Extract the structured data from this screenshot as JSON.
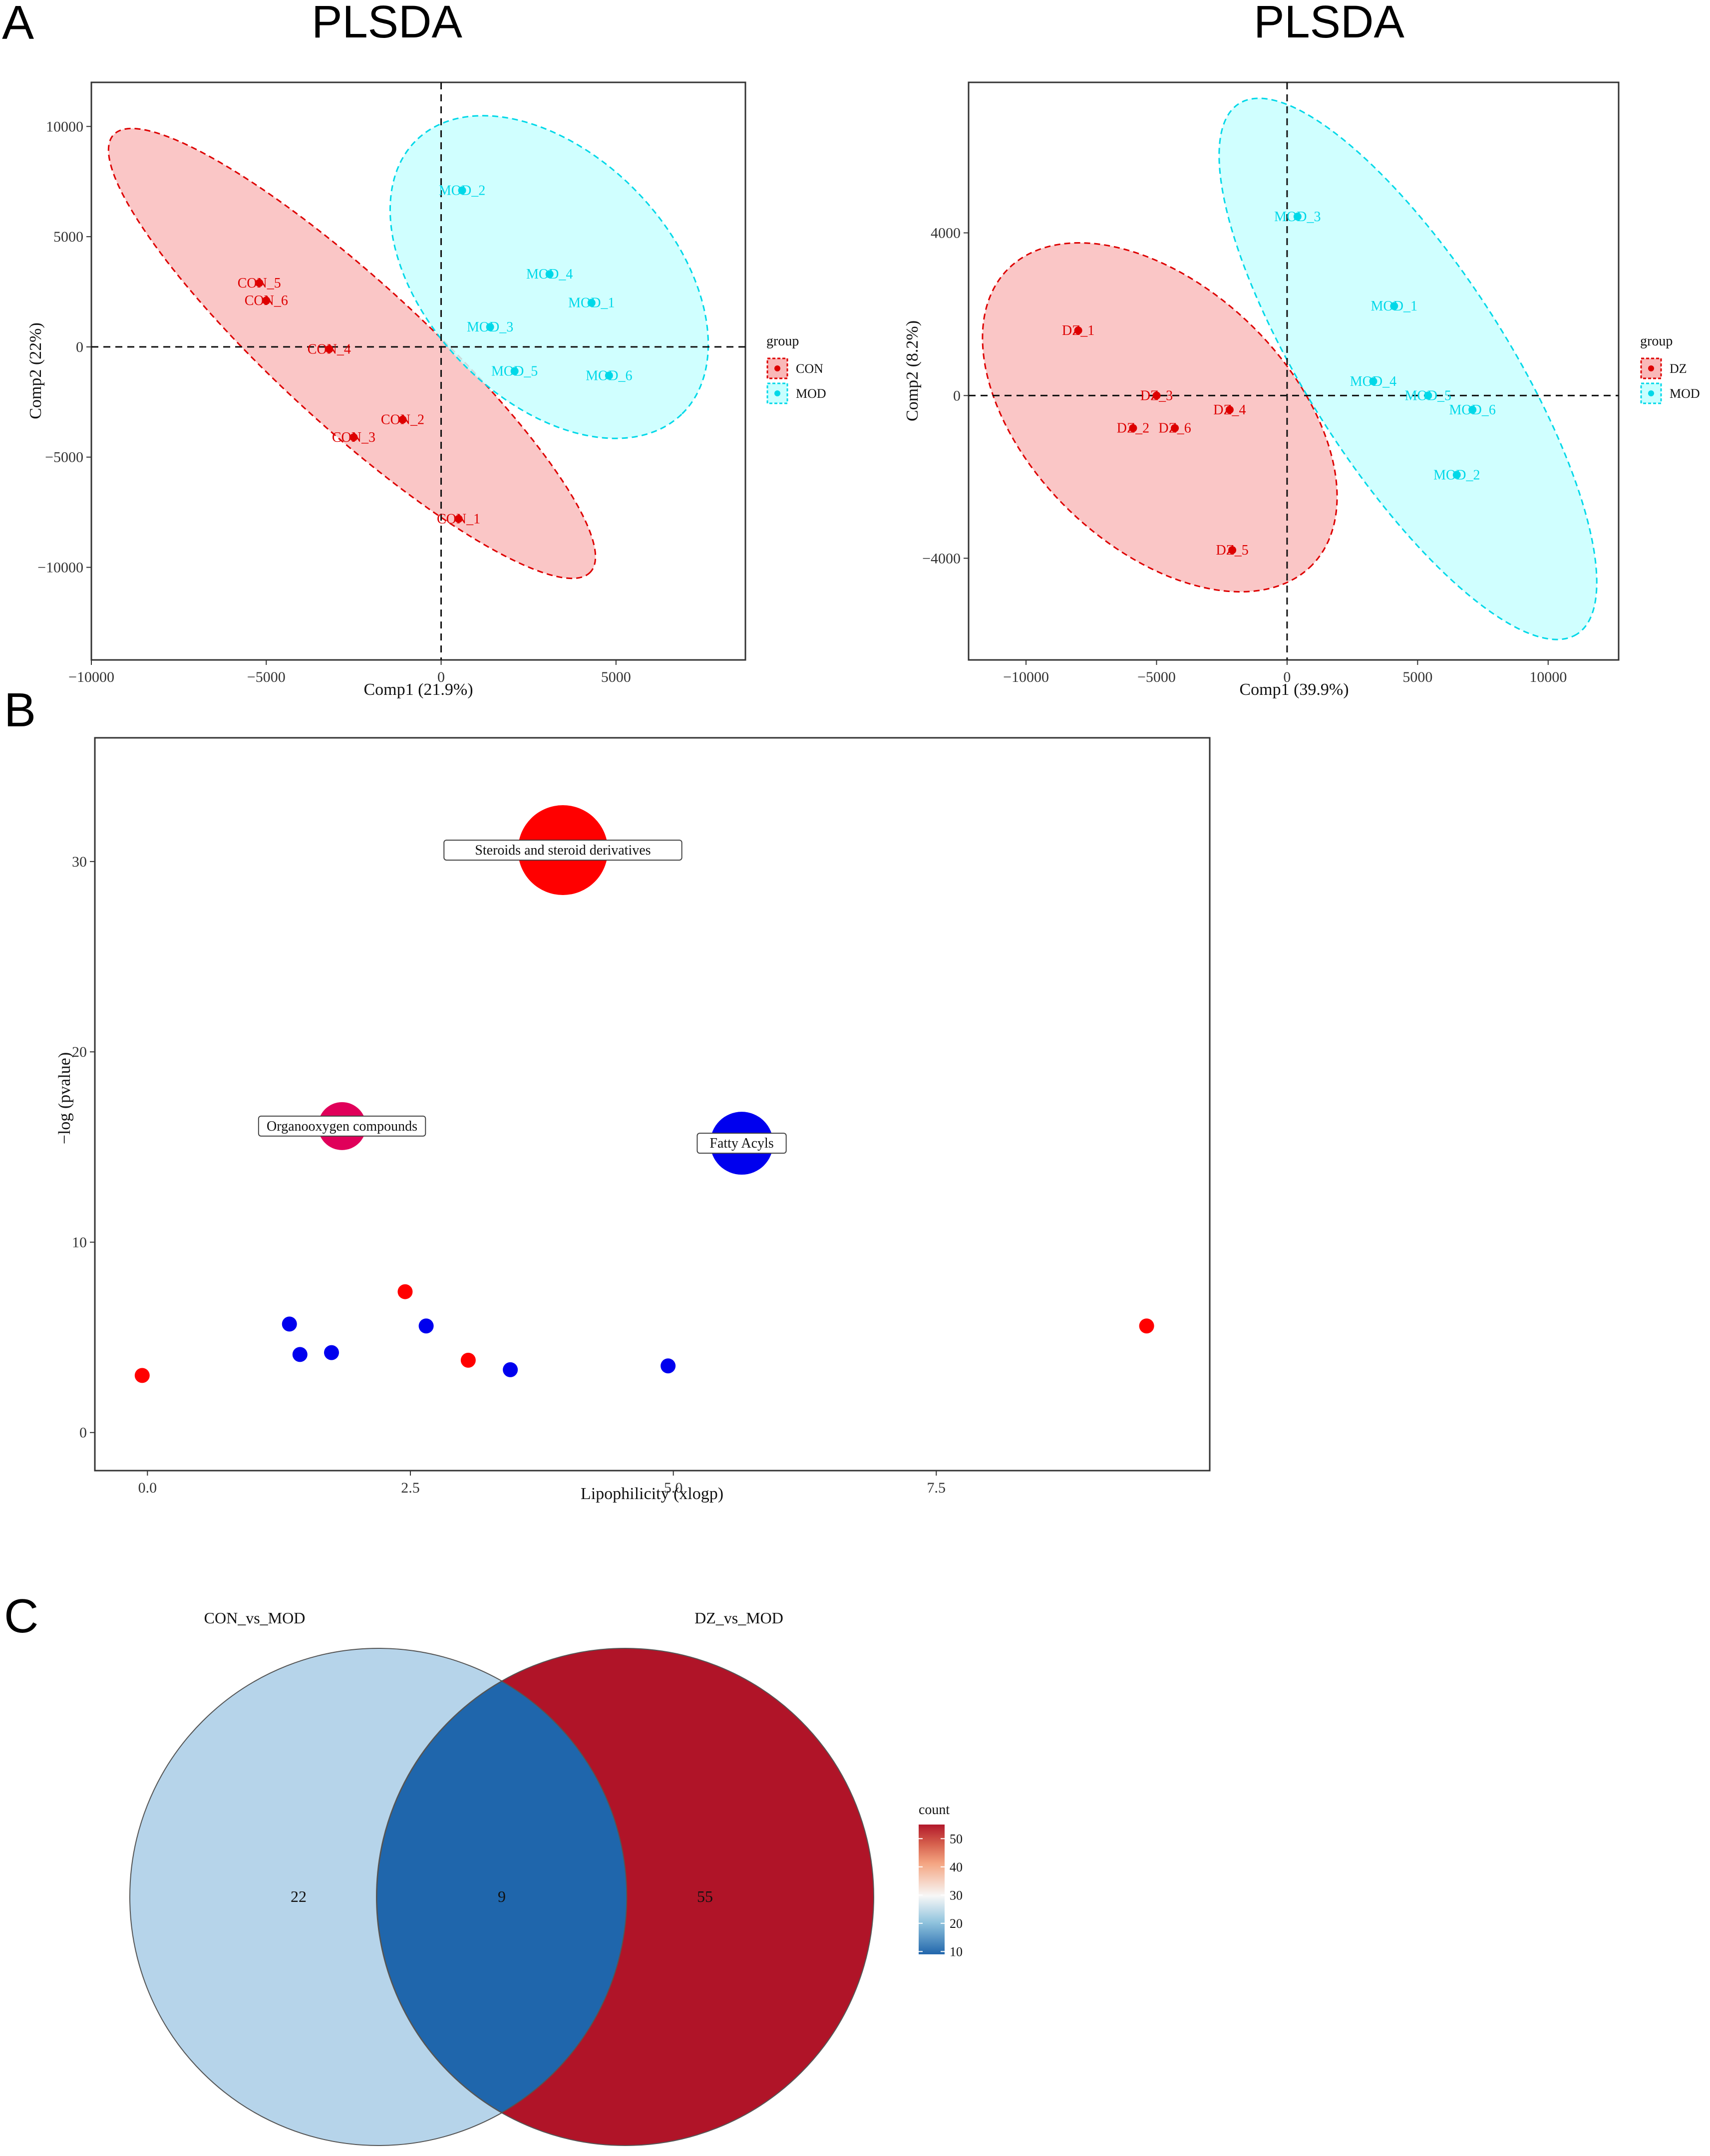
{
  "panels": {
    "a_letter": "A",
    "b_letter": "B",
    "c_letter": "C"
  },
  "colors": {
    "con_point": "#dd0000",
    "mod_point": "#00d8e8",
    "con_fill": "#f9b8b8",
    "mod_fill": "#c8ffff",
    "bubble_up": "#ff0000",
    "bubble_down": "#0000ee",
    "bubble_mix": "#e0005a",
    "venn_left": "#b6d4ea",
    "venn_overlap": "#1f66ac",
    "venn_right": "#b01428"
  },
  "chart_data": [
    {
      "type": "scatter",
      "id": "plsda_con_mod",
      "title": "PLSDA",
      "xlabel": "Comp1 (21.9%)",
      "ylabel": "Comp2 (22%)",
      "xlim": [
        -10000,
        8700
      ],
      "ylim": [
        -14200,
        12000
      ],
      "xticks": [
        -10000,
        -5000,
        0,
        5000
      ],
      "xtick_labels": [
        "−10000",
        "−5000",
        "0",
        "5000"
      ],
      "yticks": [
        10000,
        5000,
        0,
        -5000,
        -10000
      ],
      "ytick_labels": [
        "10000",
        "5000",
        "0",
        "−5000",
        "−10000"
      ],
      "legend": {
        "title": "group",
        "position": "right",
        "entries": [
          "CON",
          "MOD"
        ]
      },
      "series": [
        {
          "name": "CON",
          "points": [
            {
              "label": "CON_1",
              "x": 500,
              "y": -7800
            },
            {
              "label": "CON_2",
              "x": -1100,
              "y": -3300
            },
            {
              "label": "CON_3",
              "x": -2500,
              "y": -4100
            },
            {
              "label": "CON_4",
              "x": -3200,
              "y": -100
            },
            {
              "label": "CON_5",
              "x": -5200,
              "y": 2900
            },
            {
              "label": "CON_6",
              "x": -5000,
              "y": 2100
            }
          ]
        },
        {
          "name": "MOD",
          "points": [
            {
              "label": "MOD_1",
              "x": 4300,
              "y": 2000
            },
            {
              "label": "MOD_2",
              "x": 600,
              "y": 7100
            },
            {
              "label": "MOD_3",
              "x": 1400,
              "y": 900
            },
            {
              "label": "MOD_4",
              "x": 3100,
              "y": 3300
            },
            {
              "label": "MOD_5",
              "x": 2100,
              "y": -1100
            },
            {
              "label": "MOD_6",
              "x": 4800,
              "y": -1300
            }
          ]
        }
      ]
    },
    {
      "type": "scatter",
      "id": "plsda_dz_mod",
      "title": "PLSDA",
      "xlabel": "Comp1 (39.9%)",
      "ylabel": "Comp2 (8.2%)",
      "xlim": [
        -12200,
        12700
      ],
      "ylim": [
        -6500,
        7700
      ],
      "xticks": [
        -10000,
        -5000,
        0,
        5000,
        10000
      ],
      "xtick_labels": [
        "−10000",
        "−5000",
        "0",
        "5000",
        "10000"
      ],
      "yticks": [
        4000,
        0,
        -4000
      ],
      "ytick_labels": [
        "4000",
        "0",
        "−4000"
      ],
      "legend": {
        "title": "group",
        "position": "right",
        "entries": [
          "DZ",
          "MOD"
        ]
      },
      "series": [
        {
          "name": "DZ",
          "points": [
            {
              "label": "DZ_1",
              "x": -8000,
              "y": 1600
            },
            {
              "label": "DZ_2",
              "x": -5900,
              "y": -800
            },
            {
              "label": "DZ_3",
              "x": -5000,
              "y": 0
            },
            {
              "label": "DZ_4",
              "x": -2200,
              "y": -350
            },
            {
              "label": "DZ_5",
              "x": -2100,
              "y": -3800
            },
            {
              "label": "DZ_6",
              "x": -4300,
              "y": -800
            }
          ]
        },
        {
          "name": "MOD",
          "points": [
            {
              "label": "MOD_1",
              "x": 4100,
              "y": 2200
            },
            {
              "label": "MOD_2",
              "x": 6500,
              "y": -1950
            },
            {
              "label": "MOD_3",
              "x": 400,
              "y": 4400
            },
            {
              "label": "MOD_4",
              "x": 3300,
              "y": 350
            },
            {
              "label": "MOD_5",
              "x": 5400,
              "y": 0
            },
            {
              "label": "MOD_6",
              "x": 7100,
              "y": -350
            }
          ]
        }
      ]
    },
    {
      "type": "scatter",
      "id": "bubble_lipophilicity",
      "title": "",
      "xlabel": "Lipophilicity (xlogp)",
      "ylabel": "−log (pvalue)",
      "xlim": [
        -0.5,
        10.1
      ],
      "ylim": [
        -2,
        36.5
      ],
      "xticks": [
        0,
        2.5,
        5,
        7.5
      ],
      "xtick_labels": [
        "0.0",
        "2.5",
        "5.0",
        "7.5"
      ],
      "yticks": [
        0,
        10,
        20,
        30
      ],
      "ytick_labels": [
        "0",
        "10",
        "20",
        "30"
      ],
      "points": [
        {
          "x": 3.95,
          "y": 30.6,
          "size": 3,
          "color": "up",
          "label": "Steroids and steroid derivatives"
        },
        {
          "x": 1.85,
          "y": 16.1,
          "size": 1.6,
          "color": "mix",
          "label": "Organooxygen compounds"
        },
        {
          "x": 5.65,
          "y": 15.2,
          "size": 2.1,
          "color": "down",
          "label": "Fatty Acyls"
        },
        {
          "x": -0.05,
          "y": 3.0,
          "size": 0.5,
          "color": "up",
          "label": ""
        },
        {
          "x": 1.35,
          "y": 5.7,
          "size": 0.5,
          "color": "down",
          "label": ""
        },
        {
          "x": 1.45,
          "y": 4.1,
          "size": 0.5,
          "color": "down",
          "label": ""
        },
        {
          "x": 1.75,
          "y": 4.2,
          "size": 0.5,
          "color": "down",
          "label": ""
        },
        {
          "x": 2.45,
          "y": 7.4,
          "size": 0.5,
          "color": "up",
          "label": ""
        },
        {
          "x": 2.65,
          "y": 5.6,
          "size": 0.5,
          "color": "down",
          "label": ""
        },
        {
          "x": 3.05,
          "y": 3.8,
          "size": 0.5,
          "color": "up",
          "label": ""
        },
        {
          "x": 3.45,
          "y": 3.3,
          "size": 0.5,
          "color": "down",
          "label": ""
        },
        {
          "x": 4.95,
          "y": 3.5,
          "size": 0.5,
          "color": "down",
          "label": ""
        },
        {
          "x": 9.5,
          "y": 5.6,
          "size": 0.5,
          "color": "up",
          "label": ""
        }
      ]
    },
    {
      "type": "venn",
      "id": "venn_counts",
      "sets": [
        "CON_vs_MOD",
        "DZ_vs_MOD"
      ],
      "counts": {
        "only_left": 22,
        "both": 9,
        "only_right": 55
      },
      "legend": {
        "title": "count",
        "ticks": [
          50,
          40,
          30,
          20,
          10
        ],
        "range": [
          9,
          55
        ]
      }
    }
  ]
}
